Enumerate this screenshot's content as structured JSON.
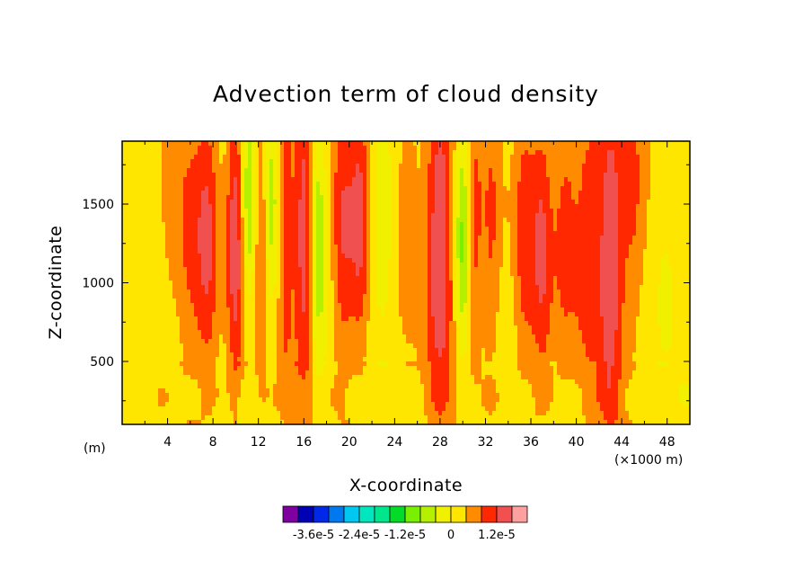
{
  "chart_data": {
    "type": "heatmap",
    "title": "Advection term of cloud density",
    "xlabel": "X-coordinate",
    "ylabel": "Z-coordinate",
    "x_unit_left": "(m)",
    "x_unit_right": "(×1000 m)",
    "xlim": [
      0,
      50
    ],
    "ylim": [
      100,
      1900
    ],
    "x_ticks": [
      "4",
      "8",
      "12",
      "16",
      "20",
      "24",
      "28",
      "32",
      "36",
      "40",
      "44",
      "48"
    ],
    "x_tick_values": [
      4,
      8,
      12,
      16,
      20,
      24,
      28,
      32,
      36,
      40,
      44,
      48
    ],
    "y_ticks": [
      "500",
      "1000",
      "1500"
    ],
    "y_tick_values": [
      500,
      1000,
      1500
    ],
    "colorbar": {
      "colors": [
        "#7f00a0",
        "#0000b4",
        "#0028e6",
        "#0078f0",
        "#00c8f0",
        "#00e6be",
        "#00e68c",
        "#00dc28",
        "#78f000",
        "#b4f000",
        "#f0f000",
        "#ffe600",
        "#ff8c00",
        "#ff2800",
        "#f05050",
        "#ffa0a0"
      ],
      "labels": [
        "-3.6e-5",
        "-2.4e-5",
        "-1.2e-5",
        "0",
        "1.2e-5"
      ],
      "label_boundary_index": [
        2,
        5,
        8,
        11,
        14
      ],
      "over_color": "#ffffff"
    },
    "features": [
      {
        "x": 4.5,
        "z": 1350,
        "amp": 0.8,
        "sx": 0.9,
        "sz": 550
      },
      {
        "x": 6.0,
        "z": 1200,
        "amp": 1.4,
        "sx": 0.7,
        "sz": 650
      },
      {
        "x": 7.5,
        "z": 1250,
        "amp": 2.6,
        "sx": 0.7,
        "sz": 650
      },
      {
        "x": 10.0,
        "z": 1300,
        "amp": 3.2,
        "sx": 0.55,
        "sz": 700
      },
      {
        "x": 11.2,
        "z": 1500,
        "amp": -2.6,
        "sx": 0.5,
        "sz": 450
      },
      {
        "x": 12.2,
        "z": 1400,
        "amp": 2.0,
        "sx": 0.45,
        "sz": 650
      },
      {
        "x": 13.2,
        "z": 1500,
        "amp": -2.0,
        "sx": 0.5,
        "sz": 500
      },
      {
        "x": 14.4,
        "z": 1300,
        "amp": 2.2,
        "sx": 0.55,
        "sz": 700
      },
      {
        "x": 16.0,
        "z": 1250,
        "amp": 3.2,
        "sx": 0.55,
        "sz": 700
      },
      {
        "x": 17.3,
        "z": 1300,
        "amp": -2.2,
        "sx": 0.5,
        "sz": 600
      },
      {
        "x": 19.5,
        "z": 1300,
        "amp": 2.4,
        "sx": 0.7,
        "sz": 650
      },
      {
        "x": 21.0,
        "z": 1400,
        "amp": 2.6,
        "sx": 0.6,
        "sz": 600
      },
      {
        "x": 23.0,
        "z": 1300,
        "amp": -1.2,
        "sx": 0.9,
        "sz": 450
      },
      {
        "x": 25.0,
        "z": 1500,
        "amp": 1.2,
        "sx": 0.8,
        "sz": 550
      },
      {
        "x": 28.0,
        "z": 1250,
        "amp": 3.6,
        "sx": 0.9,
        "sz": 750
      },
      {
        "x": 30.0,
        "z": 1300,
        "amp": -3.0,
        "sx": 0.5,
        "sz": 500
      },
      {
        "x": 31.0,
        "z": 1300,
        "amp": 2.0,
        "sx": 0.5,
        "sz": 550
      },
      {
        "x": 32.5,
        "z": 1300,
        "amp": 1.6,
        "sx": 0.6,
        "sz": 600
      },
      {
        "x": 35.5,
        "z": 1300,
        "amp": 2.0,
        "sx": 0.7,
        "sz": 700
      },
      {
        "x": 37.0,
        "z": 1200,
        "amp": 2.4,
        "sx": 0.6,
        "sz": 650
      },
      {
        "x": 39.0,
        "z": 1400,
        "amp": 1.8,
        "sx": 0.8,
        "sz": 650
      },
      {
        "x": 41.0,
        "z": 1300,
        "amp": 2.0,
        "sx": 0.8,
        "sz": 700
      },
      {
        "x": 43.0,
        "z": 1150,
        "amp": 3.4,
        "sx": 0.8,
        "sz": 800
      },
      {
        "x": 45.0,
        "z": 1500,
        "amp": 1.6,
        "sx": 0.8,
        "sz": 600
      },
      {
        "x": 48.0,
        "z": 1150,
        "amp": -0.6,
        "sx": 0.8,
        "sz": 450
      }
    ]
  }
}
